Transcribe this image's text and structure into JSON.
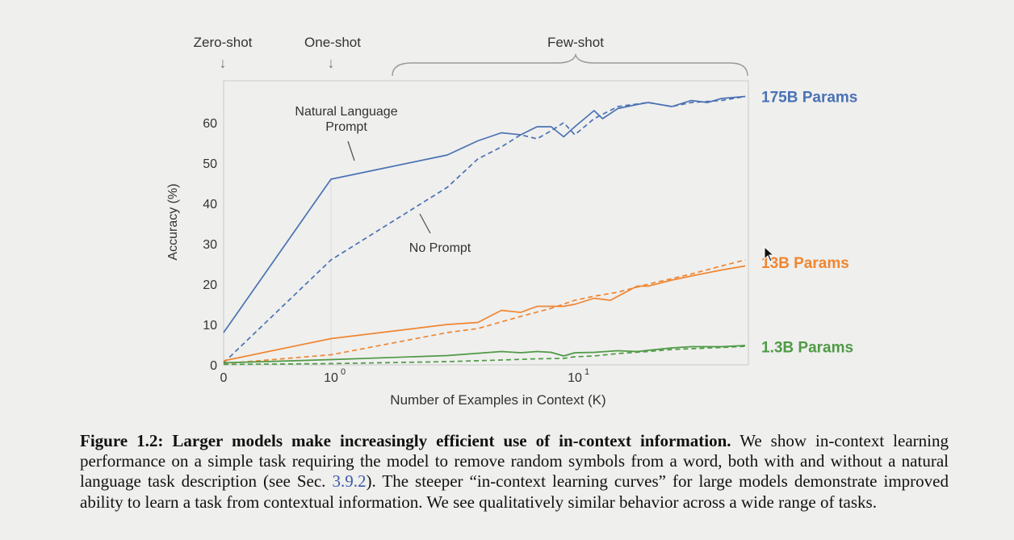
{
  "chart_data": {
    "type": "line",
    "xlabel": "Number of Examples in Context  (K)",
    "ylabel": "Accuracy (%)",
    "xscale": "log (with 0)",
    "xlim": [
      0,
      50
    ],
    "ylim": [
      0,
      70
    ],
    "x_ticks": [
      {
        "value": 0,
        "base": "0",
        "exp": ""
      },
      {
        "value": 1,
        "base": "10",
        "exp": "0"
      },
      {
        "value": 10,
        "base": "10",
        "exp": "1"
      }
    ],
    "y_ticks": [
      0,
      10,
      20,
      30,
      40,
      50,
      60
    ],
    "grid": false,
    "regions": {
      "zero_shot": "Zero-shot",
      "one_shot": "One-shot",
      "few_shot": "Few-shot"
    },
    "annotations": {
      "natural_line1": "Natural Language",
      "natural_line2": "Prompt",
      "no_prompt": "No Prompt"
    },
    "series": [
      {
        "name": "175B Params",
        "color": "#4a72b3",
        "style": "solid",
        "points": [
          [
            0,
            8
          ],
          [
            1,
            46
          ],
          [
            3,
            52
          ],
          [
            4,
            55.5
          ],
          [
            5,
            57.5
          ],
          [
            6,
            57
          ],
          [
            7,
            59
          ],
          [
            8,
            59
          ],
          [
            9,
            56.5
          ],
          [
            10,
            59
          ],
          [
            12,
            63
          ],
          [
            13,
            61
          ],
          [
            15,
            63.5
          ],
          [
            18,
            64.5
          ],
          [
            20,
            65
          ],
          [
            25,
            64
          ],
          [
            30,
            65.5
          ],
          [
            35,
            65
          ],
          [
            40,
            66
          ],
          [
            50,
            66.5
          ]
        ]
      },
      {
        "name": "175B Params",
        "color": "#4a72b3",
        "style": "dashed",
        "points": [
          [
            0,
            0.5
          ],
          [
            1,
            26
          ],
          [
            3,
            44
          ],
          [
            4,
            51
          ],
          [
            5,
            54
          ],
          [
            6,
            57
          ],
          [
            7,
            56
          ],
          [
            8,
            58
          ],
          [
            9,
            60
          ],
          [
            10,
            57
          ],
          [
            12,
            61
          ],
          [
            15,
            64
          ],
          [
            20,
            65
          ],
          [
            25,
            64
          ],
          [
            30,
            65
          ],
          [
            40,
            65.5
          ],
          [
            50,
            66.5
          ]
        ]
      },
      {
        "name": "13B Params",
        "color": "#ef8631",
        "style": "solid",
        "points": [
          [
            0,
            1
          ],
          [
            1,
            6.5
          ],
          [
            3,
            10
          ],
          [
            4,
            10.5
          ],
          [
            5,
            13.5
          ],
          [
            6,
            13
          ],
          [
            7,
            14.5
          ],
          [
            9,
            14.5
          ],
          [
            10,
            15
          ],
          [
            12,
            16.5
          ],
          [
            14,
            16
          ],
          [
            18,
            19.5
          ],
          [
            20,
            19.5
          ],
          [
            25,
            21
          ],
          [
            30,
            22
          ],
          [
            40,
            23.5
          ],
          [
            50,
            24.5
          ]
        ]
      },
      {
        "name": "13B Params",
        "color": "#ef8631",
        "style": "dashed",
        "points": [
          [
            0,
            0.3
          ],
          [
            1,
            2.5
          ],
          [
            3,
            8
          ],
          [
            4,
            9
          ],
          [
            6,
            12
          ],
          [
            8,
            14
          ],
          [
            10,
            16
          ],
          [
            12,
            17
          ],
          [
            15,
            18
          ],
          [
            20,
            20
          ],
          [
            30,
            22.5
          ],
          [
            40,
            24.5
          ],
          [
            50,
            26
          ]
        ]
      },
      {
        "name": "1.3B Params",
        "color": "#4f9a46",
        "style": "solid",
        "points": [
          [
            0,
            0.5
          ],
          [
            1,
            1.3
          ],
          [
            3,
            2.3
          ],
          [
            5,
            3.3
          ],
          [
            6,
            3
          ],
          [
            7,
            3.3
          ],
          [
            8,
            3.1
          ],
          [
            9,
            2.2
          ],
          [
            10,
            3
          ],
          [
            12,
            3.1
          ],
          [
            15,
            3.5
          ],
          [
            18,
            3.3
          ],
          [
            20,
            3.6
          ],
          [
            25,
            4.2
          ],
          [
            30,
            4.5
          ],
          [
            40,
            4.5
          ],
          [
            50,
            4.8
          ]
        ]
      },
      {
        "name": "1.3B Params",
        "color": "#4f9a46",
        "style": "dashed",
        "points": [
          [
            0,
            0.1
          ],
          [
            1,
            0.3
          ],
          [
            3,
            0.8
          ],
          [
            5,
            1.2
          ],
          [
            7,
            1.5
          ],
          [
            9,
            1.6
          ],
          [
            10,
            2
          ],
          [
            12,
            2.2
          ],
          [
            15,
            2.8
          ],
          [
            20,
            3.3
          ],
          [
            25,
            3.8
          ],
          [
            30,
            4
          ],
          [
            40,
            4.3
          ],
          [
            50,
            4.6
          ]
        ]
      }
    ],
    "series_labels": [
      {
        "name": "175B Params",
        "color": "#4a72b3",
        "y": 66.5
      },
      {
        "name": "13B Params",
        "color": "#ef8631",
        "y": 25.4
      },
      {
        "name": "1.3B Params",
        "color": "#4f9a46",
        "y": 4.5
      }
    ]
  },
  "caption": {
    "label": "Figure 1.2:",
    "bold": "Larger models make increasingly efficient use of in-context information.",
    "text_before_ref": " We show in-context learning performance on a simple task requiring the model to remove random symbols from a word, both with and without a natural language task description (see Sec. ",
    "ref": "3.9.2",
    "text_after_ref": "). The steeper “in-context learning curves” for large models demonstrate improved ability to learn a task from contextual information. We see qualitatively similar behavior across a wide range of tasks."
  }
}
